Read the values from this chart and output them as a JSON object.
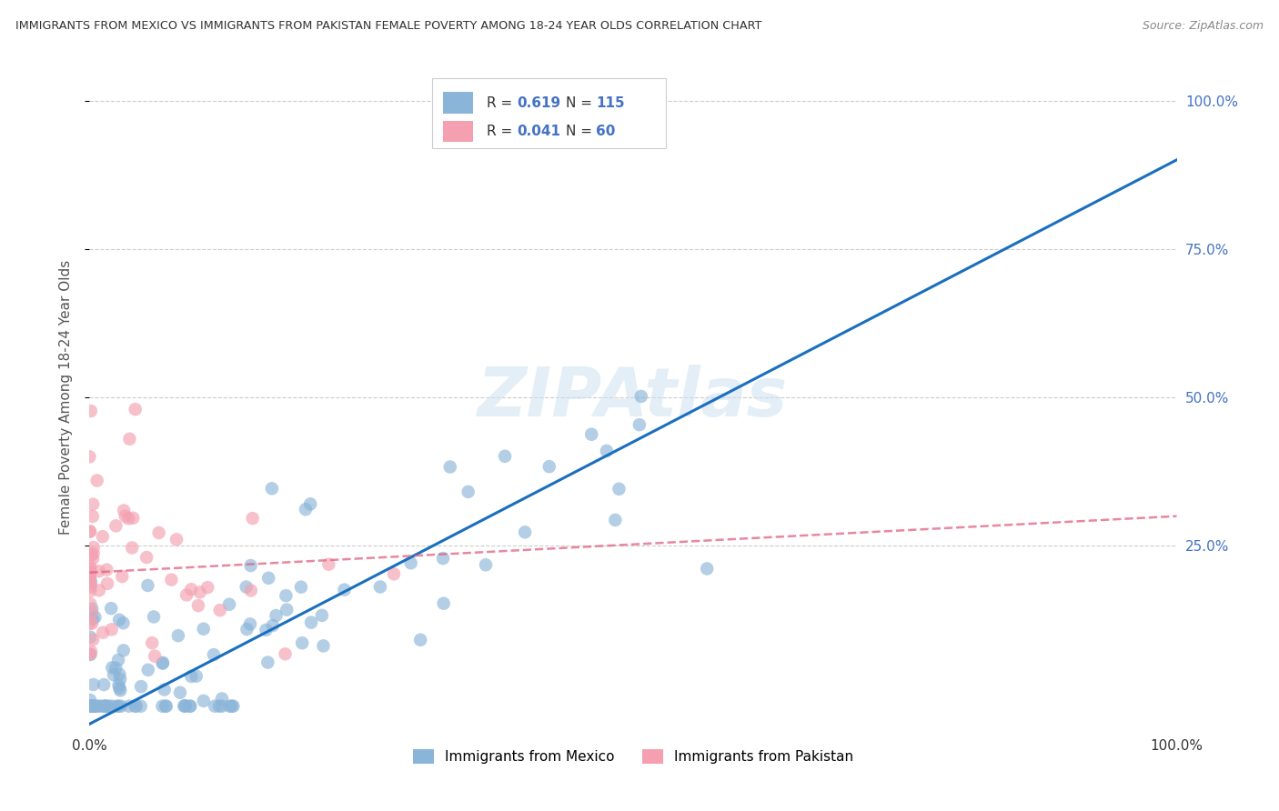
{
  "title": "IMMIGRANTS FROM MEXICO VS IMMIGRANTS FROM PAKISTAN FEMALE POVERTY AMONG 18-24 YEAR OLDS CORRELATION CHART",
  "source": "Source: ZipAtlas.com",
  "ylabel": "Female Poverty Among 18-24 Year Olds",
  "color_mexico": "#8ab4d8",
  "color_pakistan": "#f4a0b0",
  "color_mexico_line": "#1a6fbf",
  "color_pakistan_line": "#e06080",
  "watermark": "ZIPAtlas",
  "background_color": "#ffffff",
  "grid_color": "#cccccc",
  "mexico_line_x0": 0.0,
  "mexico_line_y0": -0.05,
  "mexico_line_x1": 1.0,
  "mexico_line_y1": 0.9,
  "pakistan_line_x0": 0.0,
  "pakistan_line_y0": 0.205,
  "pakistan_line_x1": 1.0,
  "pakistan_line_y1": 0.3,
  "xlim": [
    0.0,
    1.0
  ],
  "ylim": [
    -0.06,
    1.06
  ],
  "xtick_positions": [
    0.0,
    0.25,
    0.5,
    0.75,
    1.0
  ],
  "xtick_labels": [
    "0.0%",
    "",
    "",
    "",
    "100.0%"
  ],
  "ytick_right_positions": [
    0.25,
    0.5,
    0.75,
    1.0
  ],
  "ytick_right_labels": [
    "25.0%",
    "50.0%",
    "75.0%",
    "100.0%"
  ],
  "legend_R_mexico": "0.619",
  "legend_N_mexico": "115",
  "legend_R_pakistan": "0.041",
  "legend_N_pakistan": "60"
}
